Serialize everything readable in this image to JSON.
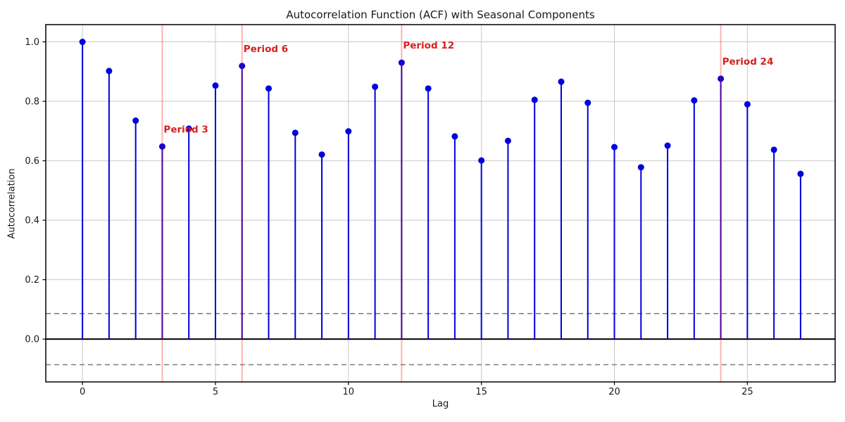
{
  "chart_data": {
    "type": "stem",
    "title": "Autocorrelation Function (ACF) with Seasonal Components",
    "xlabel": "Lag",
    "ylabel": "Autocorrelation",
    "x": [
      0,
      1,
      2,
      3,
      4,
      5,
      6,
      7,
      8,
      9,
      10,
      11,
      12,
      13,
      14,
      15,
      16,
      17,
      18,
      19,
      20,
      21,
      22,
      23,
      24,
      25,
      26,
      27
    ],
    "values": [
      1.0,
      0.902,
      0.735,
      0.648,
      0.708,
      0.853,
      0.919,
      0.843,
      0.694,
      0.621,
      0.699,
      0.849,
      0.93,
      0.843,
      0.682,
      0.601,
      0.667,
      0.805,
      0.866,
      0.795,
      0.646,
      0.578,
      0.651,
      0.803,
      0.876,
      0.79,
      0.637,
      0.556
    ],
    "xlim": [
      -1.38,
      28.3
    ],
    "ylim": [
      -0.144,
      1.058
    ],
    "xticks": [
      0,
      5,
      10,
      15,
      20,
      25
    ],
    "yticks": [
      0.0,
      0.2,
      0.4,
      0.6,
      0.8,
      1.0
    ],
    "grid": true,
    "legend": false,
    "zero_line": 0.0,
    "confidence_bounds": {
      "upper": 0.086,
      "lower": -0.086,
      "style": "dashed"
    },
    "seasonal_periods": [
      {
        "lag": 3,
        "label": "Period 3"
      },
      {
        "lag": 6,
        "label": "Period 6"
      },
      {
        "lag": 12,
        "label": "Period 12"
      },
      {
        "lag": 24,
        "label": "Period 24"
      }
    ],
    "annotation_value_offset": 0.07,
    "colors": {
      "stem": "#0000dd",
      "marker": "#0000dd",
      "period_line": "rgba(255,0,0,0.30)",
      "annotation_text": "#d62020",
      "confidence_line": "#7f7f7f",
      "zero_line": "#000000",
      "grid_line": "#c8c8c8",
      "spine": "#000000",
      "tick_text": "#1a1a1a"
    }
  }
}
